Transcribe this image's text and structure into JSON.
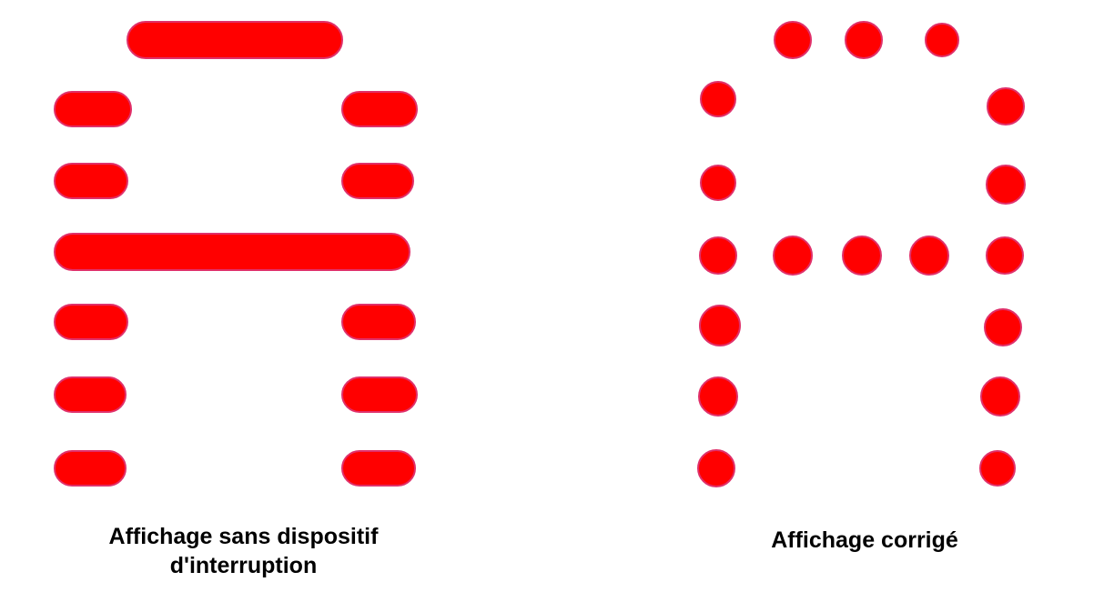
{
  "colors": {
    "mark": "#ff0000",
    "mark_edge": "#e0306a",
    "background": "#ffffff"
  },
  "left_panel": {
    "caption_line1": "Affichage sans dispositif",
    "caption_line2": "d'interruption"
  },
  "right_panel": {
    "caption": "Affichage corrigé"
  }
}
